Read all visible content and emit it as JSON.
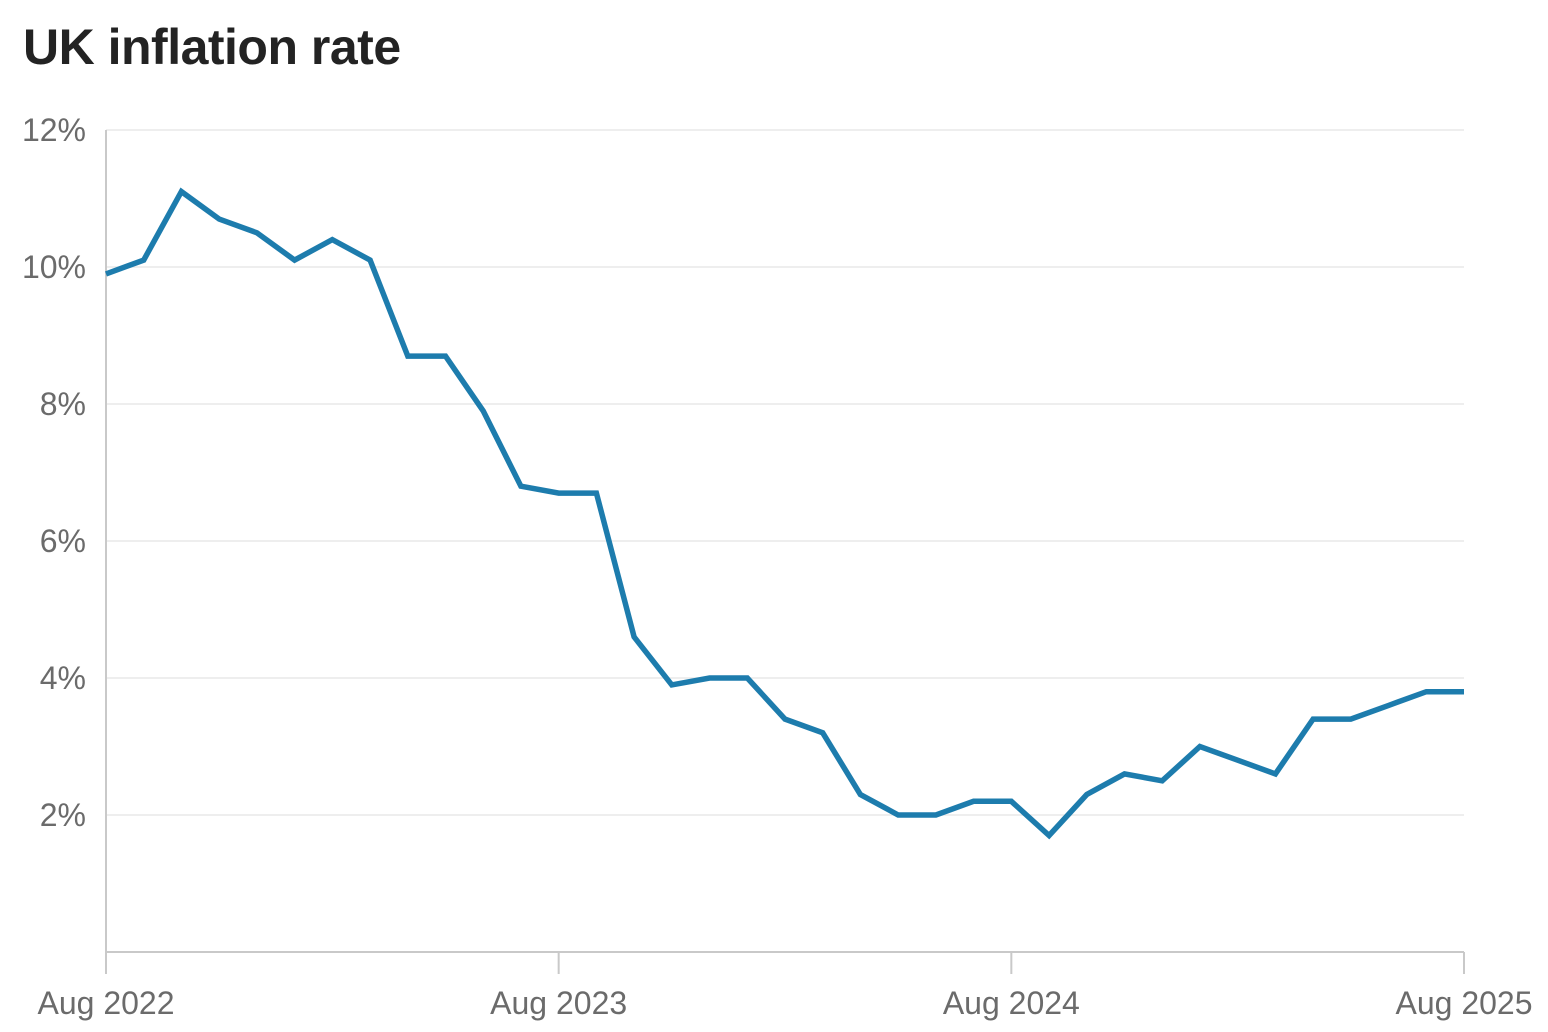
{
  "page": {
    "title": "UK inflation rate"
  },
  "chart_data": {
    "type": "line",
    "title": "UK inflation rate",
    "unit": "percent",
    "grid": "horizontal",
    "legend": "none",
    "ylim": [
      0,
      12
    ],
    "y_ticks": [
      {
        "value": 12,
        "label": "12%"
      },
      {
        "value": 10,
        "label": "10%"
      },
      {
        "value": 8,
        "label": "8%"
      },
      {
        "value": 6,
        "label": "6%"
      },
      {
        "value": 4,
        "label": "4%"
      },
      {
        "value": 2,
        "label": "2%"
      }
    ],
    "x_ticks": [
      {
        "index": 0,
        "label": "Aug 2022"
      },
      {
        "index": 12,
        "label": "Aug 2023"
      },
      {
        "index": 24,
        "label": "Aug 2024"
      },
      {
        "index": 36,
        "label": "Aug 2025"
      }
    ],
    "categories": [
      "Aug 2022",
      "Sep 2022",
      "Oct 2022",
      "Nov 2022",
      "Dec 2022",
      "Jan 2023",
      "Feb 2023",
      "Mar 2023",
      "Apr 2023",
      "May 2023",
      "Jun 2023",
      "Jul 2023",
      "Aug 2023",
      "Sep 2023",
      "Oct 2023",
      "Nov 2023",
      "Dec 2023",
      "Jan 2024",
      "Feb 2024",
      "Mar 2024",
      "Apr 2024",
      "May 2024",
      "Jun 2024",
      "Jul 2024",
      "Aug 2024",
      "Sep 2024",
      "Oct 2024",
      "Nov 2024",
      "Dec 2024",
      "Jan 2025",
      "Feb 2025",
      "Mar 2025",
      "Apr 2025",
      "May 2025",
      "Jun 2025",
      "Jul 2025",
      "Aug 2025"
    ],
    "values": [
      9.9,
      10.1,
      11.1,
      10.7,
      10.5,
      10.1,
      10.4,
      10.1,
      8.7,
      8.7,
      7.9,
      6.8,
      6.7,
      6.7,
      4.6,
      3.9,
      4.0,
      4.0,
      3.4,
      3.2,
      2.3,
      2.0,
      2.0,
      2.2,
      2.2,
      1.7,
      2.3,
      2.6,
      2.5,
      3.0,
      2.8,
      2.6,
      3.4,
      3.4,
      3.6,
      3.8,
      3.8
    ],
    "colors": {
      "line": "#1d7cad",
      "grid": "#e9e9e9",
      "axis": "#c9c9c9",
      "tick_label": "#6b6b6b",
      "title": "#232323",
      "background": "#ffffff"
    }
  }
}
